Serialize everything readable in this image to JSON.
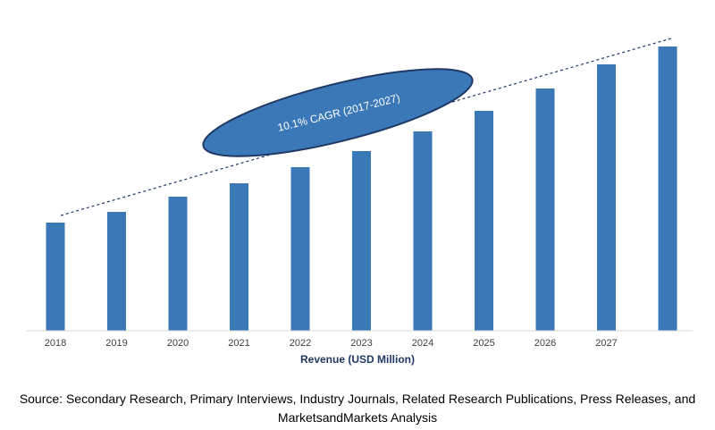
{
  "chart_data": {
    "type": "bar",
    "categories": [
      "2018",
      "2019",
      "2020",
      "2021",
      "2022",
      "2023",
      "2024",
      "2025",
      "2026",
      "2027",
      ""
    ],
    "values": [
      121,
      133,
      150,
      165,
      183,
      201,
      223,
      246,
      271,
      298,
      318
    ],
    "xlabel": "Revenue (USD Million)",
    "ylabel": "",
    "ylim": [
      0,
      340
    ],
    "yaxis_visible": false,
    "grid": false,
    "bar_color": "#3a78b8",
    "trend_line": {
      "style": "dashed",
      "color": "#1f3864"
    },
    "annotation": {
      "text": "10.1% CAGR (2017-2027)",
      "shape": "ellipse",
      "fill": "#3a78b8",
      "stroke": "#1f3864"
    }
  },
  "source_note": "Source: Secondary Research, Primary Interviews, Industry Journals, Related Research Publications, Press Releases, and MarketsandMarkets Analysis"
}
